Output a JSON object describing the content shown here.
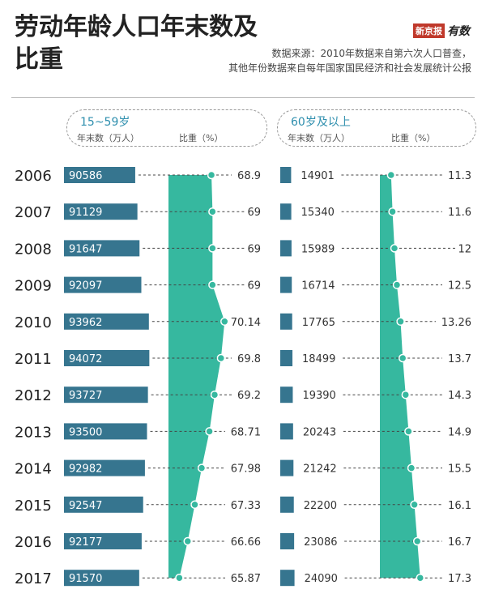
{
  "title": "劳动年龄人口年末数及比重",
  "brand": {
    "name1": "新京报",
    "name2": "有数"
  },
  "source": {
    "line1": "数据来源：2010年数据来自第六次人口普查，",
    "line2": "其他年份数据来自每年国家国民经济和社会发展统计公报"
  },
  "groups": [
    {
      "title": "15~59岁",
      "label_count": "年末数（万人）",
      "label_share": "比重（%）"
    },
    {
      "title": "60岁及以上",
      "label_count": "年末数（万人）",
      "label_share": "比重（%）"
    }
  ],
  "colors": {
    "bar": "#36758f",
    "area": "#36b89f",
    "bar_text": "#ffffff",
    "label": "#333333"
  },
  "chart_data": [
    {
      "type": "bar",
      "group": "15~59岁",
      "categories": [
        "2006",
        "2007",
        "2008",
        "2009",
        "2010",
        "2011",
        "2012",
        "2013",
        "2014",
        "2015",
        "2016",
        "2017"
      ],
      "counts": [
        90586,
        91129,
        91647,
        92097,
        93962,
        94072,
        93727,
        93500,
        92982,
        92547,
        92177,
        91570
      ],
      "shares": [
        68.9,
        69,
        69,
        69,
        70.14,
        69.8,
        69.2,
        68.71,
        67.98,
        67.33,
        66.66,
        65.87
      ]
    },
    {
      "type": "bar",
      "group": "60岁及以上",
      "categories": [
        "2006",
        "2007",
        "2008",
        "2009",
        "2010",
        "2011",
        "2012",
        "2013",
        "2014",
        "2015",
        "2016",
        "2017"
      ],
      "counts": [
        14901,
        15340,
        15989,
        16714,
        17765,
        18499,
        19390,
        20243,
        21242,
        22200,
        23086,
        24090
      ],
      "shares": [
        11.3,
        11.6,
        12,
        12.5,
        13.26,
        13.7,
        14.3,
        14.9,
        15.5,
        16.1,
        16.7,
        17.3
      ]
    }
  ]
}
